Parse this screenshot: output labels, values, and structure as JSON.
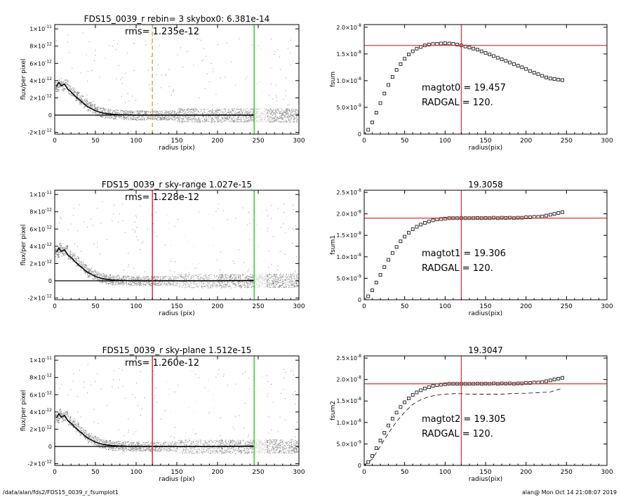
{
  "footer": {
    "path": "/data/alan/fds2/FDS15_0039_r_fsumplot1",
    "stamp": "alan@  Mon Oct 14 21:08:07 2019"
  },
  "colors": {
    "scatter": "#8a8a8a",
    "scatter_light": "#cfcfcf",
    "profile": "#000000",
    "orange": "#f0a040",
    "red": "#e03030",
    "green": "#30d030",
    "curve": "#555555"
  },
  "chart_data": [
    {
      "type": "scatter",
      "id": "profile1",
      "title": "FDS15_0039_r rebin= 3    skybox0:  6.381e-14",
      "annotation": "rms= 1.235e-12",
      "xlabel": "radius (pix)",
      "ylabel": "flux/per pixel",
      "xlim": [
        0,
        300
      ],
      "ylim": [
        -2.2e-12,
        1.05e-11
      ],
      "xticks": [
        "0",
        "50",
        "100",
        "150",
        "200",
        "250",
        "300"
      ],
      "yticks": [
        {
          "v": 1e-11,
          "m": "1×10",
          "e": "-11"
        },
        {
          "v": 8e-12,
          "m": "8×10",
          "e": "-12"
        },
        {
          "v": 6e-12,
          "m": "6×10",
          "e": "-12"
        },
        {
          "v": 4e-12,
          "m": "4×10",
          "e": "-12"
        },
        {
          "v": 2e-12,
          "m": "2×10",
          "e": "-12"
        },
        {
          "v": 0,
          "m": "0",
          "e": ""
        },
        {
          "v": -2e-12,
          "m": "-2×10",
          "e": "-12"
        }
      ],
      "vlines": [
        {
          "x": 120,
          "color": "orange",
          "dashed": true
        },
        {
          "x": 245,
          "color": "green",
          "dashed": false
        }
      ],
      "profile": {
        "x": [
          2,
          5,
          8,
          12,
          16,
          20,
          25,
          30,
          35,
          40,
          45,
          50,
          55,
          60,
          70,
          80,
          90,
          100,
          120,
          150,
          200,
          245
        ],
        "y": [
          3.3e-12,
          3.8e-12,
          3.4e-12,
          3.6e-12,
          3e-12,
          2.7e-12,
          2.2e-12,
          1.8e-12,
          1.4e-12,
          1e-12,
          7.5e-13,
          5e-13,
          3.5e-13,
          2.2e-13,
          1e-13,
          5e-14,
          2e-14,
          0.0,
          0.0,
          0.0,
          0.0,
          0.0
        ]
      }
    },
    {
      "type": "scatter",
      "id": "profile2",
      "title": "FDS15_0039_r sky-range  1.027e-15",
      "annotation": "rms= 1.228e-12",
      "xlabel": "radius (pix)",
      "ylabel": "flux/per pixel",
      "xlim": [
        0,
        300
      ],
      "ylim": [
        -2.2e-12,
        1.05e-11
      ],
      "xticks": [
        "0",
        "50",
        "100",
        "150",
        "200",
        "250",
        "300"
      ],
      "yticks": [
        {
          "v": 1e-11,
          "m": "1×10",
          "e": "-11"
        },
        {
          "v": 8e-12,
          "m": "8×10",
          "e": "-12"
        },
        {
          "v": 6e-12,
          "m": "6×10",
          "e": "-12"
        },
        {
          "v": 4e-12,
          "m": "4×10",
          "e": "-12"
        },
        {
          "v": 2e-12,
          "m": "2×10",
          "e": "-12"
        },
        {
          "v": 0,
          "m": "0",
          "e": ""
        },
        {
          "v": -2e-12,
          "m": "-2×10",
          "e": "-12"
        }
      ],
      "vlines": [
        {
          "x": 120,
          "color": "red",
          "dashed": false
        },
        {
          "x": 245,
          "color": "green",
          "dashed": false
        }
      ],
      "profile": {
        "x": [
          2,
          5,
          8,
          12,
          16,
          20,
          25,
          30,
          35,
          40,
          45,
          50,
          55,
          60,
          70,
          80,
          90,
          100,
          120,
          150,
          200,
          245
        ],
        "y": [
          3.3e-12,
          3.8e-12,
          3.4e-12,
          3.6e-12,
          3e-12,
          2.7e-12,
          2.2e-12,
          1.8e-12,
          1.4e-12,
          1e-12,
          7.5e-13,
          5e-13,
          3.5e-13,
          2.2e-13,
          1e-13,
          5e-14,
          2e-14,
          0.0,
          0.0,
          0.0,
          0.0,
          5e-14
        ]
      }
    },
    {
      "type": "scatter",
      "id": "profile3",
      "title": "FDS15_0039_r sky-plane  1.512e-15",
      "annotation": "rms= 1.260e-12",
      "xlabel": "radius (pix)",
      "ylabel": "flux/per pixel",
      "xlim": [
        0,
        300
      ],
      "ylim": [
        -2.2e-12,
        1.05e-11
      ],
      "xticks": [
        "0",
        "50",
        "100",
        "150",
        "200",
        "250",
        "300"
      ],
      "yticks": [
        {
          "v": 1e-11,
          "m": "1×10",
          "e": "-11"
        },
        {
          "v": 8e-12,
          "m": "8×10",
          "e": "-12"
        },
        {
          "v": 6e-12,
          "m": "6×10",
          "e": "-12"
        },
        {
          "v": 4e-12,
          "m": "4×10",
          "e": "-12"
        },
        {
          "v": 2e-12,
          "m": "2×10",
          "e": "-12"
        },
        {
          "v": 0,
          "m": "0",
          "e": ""
        },
        {
          "v": -2e-12,
          "m": "-2×10",
          "e": "-12"
        }
      ],
      "vlines": [
        {
          "x": 120,
          "color": "red",
          "dashed": false
        },
        {
          "x": 245,
          "color": "green",
          "dashed": false
        }
      ],
      "profile": {
        "x": [
          2,
          5,
          8,
          12,
          16,
          20,
          25,
          30,
          35,
          40,
          45,
          50,
          55,
          60,
          70,
          80,
          90,
          100,
          120,
          150,
          200,
          245
        ],
        "y": [
          3.3e-12,
          3.8e-12,
          3.4e-12,
          3.6e-12,
          3e-12,
          2.7e-12,
          2.2e-12,
          1.8e-12,
          1.4e-12,
          1e-12,
          7.5e-13,
          5e-13,
          3.5e-13,
          2.2e-13,
          1e-13,
          5e-14,
          2e-14,
          0.0,
          0.0,
          0.0,
          0.0,
          5e-14
        ]
      }
    },
    {
      "type": "line",
      "id": "growth0",
      "title": "",
      "xlabel": "radius(pix)",
      "ylabel": "fsum",
      "xlim": [
        0,
        300
      ],
      "ylim": [
        0,
        2.05e-08
      ],
      "xticks": [
        "0",
        "50",
        "100",
        "150",
        "200",
        "250",
        "300"
      ],
      "yticks": [
        {
          "v": 2e-08,
          "m": "2.0×10",
          "e": "-8"
        },
        {
          "v": 1.5e-08,
          "m": "1.5×10",
          "e": "-8"
        },
        {
          "v": 1e-08,
          "m": "1.0×10",
          "e": "-8"
        },
        {
          "v": 5e-09,
          "m": "5.0×10",
          "e": "-9"
        },
        {
          "v": 0,
          "m": "0",
          "e": ""
        }
      ],
      "annotations": [
        "magtot0 =  19.457",
        "RADGAL =    120."
      ],
      "hline": 1.66e-08,
      "vline": 120,
      "series": [
        {
          "x": [
            0,
            5,
            10,
            15,
            20,
            25,
            30,
            35,
            40,
            45,
            50,
            55,
            60,
            65,
            70,
            75,
            80,
            85,
            90,
            95,
            100,
            105,
            110,
            115,
            120,
            125,
            130,
            135,
            140,
            145,
            150,
            155,
            160,
            165,
            170,
            175,
            180,
            185,
            190,
            195,
            200,
            205,
            210,
            215,
            220,
            225,
            230,
            235,
            240,
            245
          ],
          "y": [
            0.0,
            8e-10,
            2.2e-09,
            4e-09,
            5.8e-09,
            7.6e-09,
            9.2e-09,
            1.07e-08,
            1.2e-08,
            1.31e-08,
            1.41e-08,
            1.49e-08,
            1.55e-08,
            1.6e-08,
            1.63e-08,
            1.66e-08,
            1.675e-08,
            1.685e-08,
            1.69e-08,
            1.695e-08,
            1.7e-08,
            1.695e-08,
            1.69e-08,
            1.675e-08,
            1.66e-08,
            1.64e-08,
            1.62e-08,
            1.6e-08,
            1.58e-08,
            1.55e-08,
            1.52e-08,
            1.49e-08,
            1.46e-08,
            1.43e-08,
            1.4e-08,
            1.37e-08,
            1.34e-08,
            1.31e-08,
            1.28e-08,
            1.25e-08,
            1.22e-08,
            1.18e-08,
            1.15e-08,
            1.12e-08,
            1.09e-08,
            1.06e-08,
            1.04e-08,
            1.03e-08,
            1.02e-08,
            1.01e-08
          ]
        }
      ]
    },
    {
      "type": "line",
      "id": "growth1",
      "title": "19.3058",
      "xlabel": "radius(pix)",
      "ylabel": "fsum1",
      "xlim": [
        0,
        300
      ],
      "ylim": [
        0,
        2.55e-08
      ],
      "xticks": [
        "0",
        "50",
        "100",
        "150",
        "200",
        "250",
        "300"
      ],
      "yticks": [
        {
          "v": 2.5e-08,
          "m": "2.5×10",
          "e": "-8"
        },
        {
          "v": 2e-08,
          "m": "2.0×10",
          "e": "-8"
        },
        {
          "v": 1.5e-08,
          "m": "1.5×10",
          "e": "-8"
        },
        {
          "v": 1e-08,
          "m": "1.0×10",
          "e": "-8"
        },
        {
          "v": 5e-09,
          "m": "5.0×10",
          "e": "-9"
        },
        {
          "v": 0,
          "m": "0",
          "e": ""
        }
      ],
      "annotations": [
        "magtot1 =  19.306",
        "RADGAL =    120."
      ],
      "hline": 1.9e-08,
      "vline": 120,
      "series": [
        {
          "x": [
            0,
            5,
            10,
            15,
            20,
            25,
            30,
            35,
            40,
            45,
            50,
            55,
            60,
            65,
            70,
            75,
            80,
            85,
            90,
            95,
            100,
            105,
            110,
            115,
            120,
            125,
            130,
            135,
            140,
            145,
            150,
            155,
            160,
            165,
            170,
            175,
            180,
            185,
            190,
            195,
            200,
            205,
            210,
            215,
            220,
            225,
            230,
            235,
            240,
            245
          ],
          "y": [
            0.0,
            8e-10,
            2.2e-09,
            4e-09,
            5.8e-09,
            7.6e-09,
            9.3e-09,
            1.09e-08,
            1.23e-08,
            1.36e-08,
            1.47e-08,
            1.56e-08,
            1.64e-08,
            1.7e-08,
            1.75e-08,
            1.79e-08,
            1.82e-08,
            1.85e-08,
            1.87e-08,
            1.88e-08,
            1.89e-08,
            1.9e-08,
            1.9e-08,
            1.9e-08,
            1.9e-08,
            1.9e-08,
            1.9e-08,
            1.9e-08,
            1.905e-08,
            1.9e-08,
            1.905e-08,
            1.9e-08,
            1.91e-08,
            1.9e-08,
            1.91e-08,
            1.905e-08,
            1.91e-08,
            1.9e-08,
            1.91e-08,
            1.91e-08,
            1.92e-08,
            1.92e-08,
            1.93e-08,
            1.93e-08,
            1.94e-08,
            1.96e-08,
            1.98e-08,
            2e-08,
            2.02e-08,
            2.04e-08
          ]
        }
      ]
    },
    {
      "type": "line",
      "id": "growth2",
      "title": "19.3047",
      "xlabel": "radius(pix)",
      "ylabel": "fsum2",
      "xlim": [
        0,
        300
      ],
      "ylim": [
        0,
        2.55e-08
      ],
      "xticks": [
        "0",
        "50",
        "100",
        "150",
        "200",
        "250",
        "300"
      ],
      "yticks": [
        {
          "v": 2.5e-08,
          "m": "2.5×10",
          "e": "-8"
        },
        {
          "v": 2e-08,
          "m": "2.0×10",
          "e": "-8"
        },
        {
          "v": 1.5e-08,
          "m": "1.5×10",
          "e": "-8"
        },
        {
          "v": 1e-08,
          "m": "1.0×10",
          "e": "-8"
        },
        {
          "v": 5e-09,
          "m": "5.0×10",
          "e": "-9"
        },
        {
          "v": 0,
          "m": "0",
          "e": ""
        }
      ],
      "annotations": [
        "magtot2 =  19.305",
        "RADGAL =    120."
      ],
      "hline": 1.9e-08,
      "vline": 120,
      "series": [
        {
          "x": [
            0,
            5,
            10,
            15,
            20,
            25,
            30,
            35,
            40,
            45,
            50,
            55,
            60,
            65,
            70,
            75,
            80,
            85,
            90,
            95,
            100,
            105,
            110,
            115,
            120,
            125,
            130,
            135,
            140,
            145,
            150,
            155,
            160,
            165,
            170,
            175,
            180,
            185,
            190,
            195,
            200,
            205,
            210,
            215,
            220,
            225,
            230,
            235,
            240,
            245
          ],
          "y": [
            0.0,
            8e-10,
            2.2e-09,
            4e-09,
            5.8e-09,
            7.6e-09,
            9.3e-09,
            1.09e-08,
            1.23e-08,
            1.36e-08,
            1.47e-08,
            1.56e-08,
            1.64e-08,
            1.7e-08,
            1.75e-08,
            1.79e-08,
            1.82e-08,
            1.85e-08,
            1.87e-08,
            1.88e-08,
            1.89e-08,
            1.9e-08,
            1.9e-08,
            1.9e-08,
            1.9e-08,
            1.9e-08,
            1.9e-08,
            1.9e-08,
            1.905e-08,
            1.9e-08,
            1.905e-08,
            1.9e-08,
            1.91e-08,
            1.9e-08,
            1.91e-08,
            1.905e-08,
            1.91e-08,
            1.9e-08,
            1.91e-08,
            1.91e-08,
            1.92e-08,
            1.92e-08,
            1.93e-08,
            1.93e-08,
            1.94e-08,
            1.96e-08,
            1.98e-08,
            2e-08,
            2.02e-08,
            2.04e-08
          ]
        },
        {
          "dashed": true,
          "x": [
            0,
            10,
            20,
            30,
            40,
            50,
            60,
            70,
            80,
            90,
            100,
            110,
            120,
            130,
            140,
            150,
            160,
            170,
            180,
            190,
            200,
            210,
            220,
            230,
            240,
            245
          ],
          "y": [
            0.0,
            1.5e-09,
            4.5e-09,
            7.5e-09,
            1.02e-08,
            1.24e-08,
            1.42e-08,
            1.53e-08,
            1.6e-08,
            1.64e-08,
            1.66e-08,
            1.67e-08,
            1.67e-08,
            1.66e-08,
            1.66e-08,
            1.66e-08,
            1.66e-08,
            1.66e-08,
            1.67e-08,
            1.68e-08,
            1.68e-08,
            1.69e-08,
            1.7e-08,
            1.71e-08,
            1.77e-08,
            1.79e-08
          ]
        }
      ]
    }
  ]
}
